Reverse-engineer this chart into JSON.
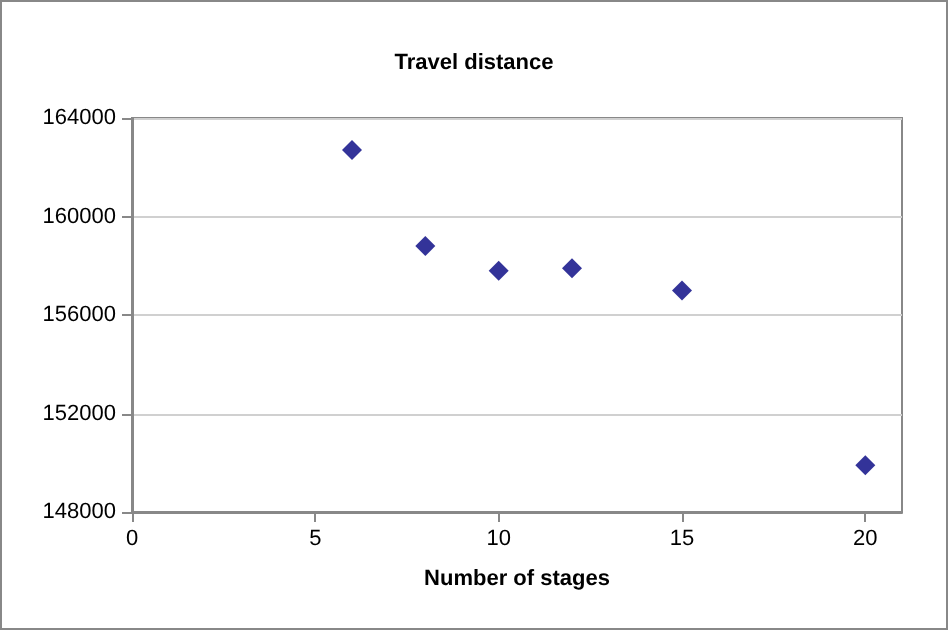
{
  "chart_data": {
    "type": "scatter",
    "title": "Travel distance",
    "xlabel": "Number of stages",
    "x": [
      6,
      8,
      10,
      12,
      15,
      20
    ],
    "values": [
      162700,
      158800,
      157800,
      157900,
      157000,
      149900
    ],
    "color": "#000080",
    "marker": "diamond",
    "xlim": [
      0,
      21
    ],
    "xticks": [
      0,
      5,
      10,
      15,
      20
    ],
    "ylim": [
      148000,
      164000
    ],
    "yticks": [
      148000,
      152000,
      156000,
      160000,
      164000
    ],
    "grid": "y"
  }
}
